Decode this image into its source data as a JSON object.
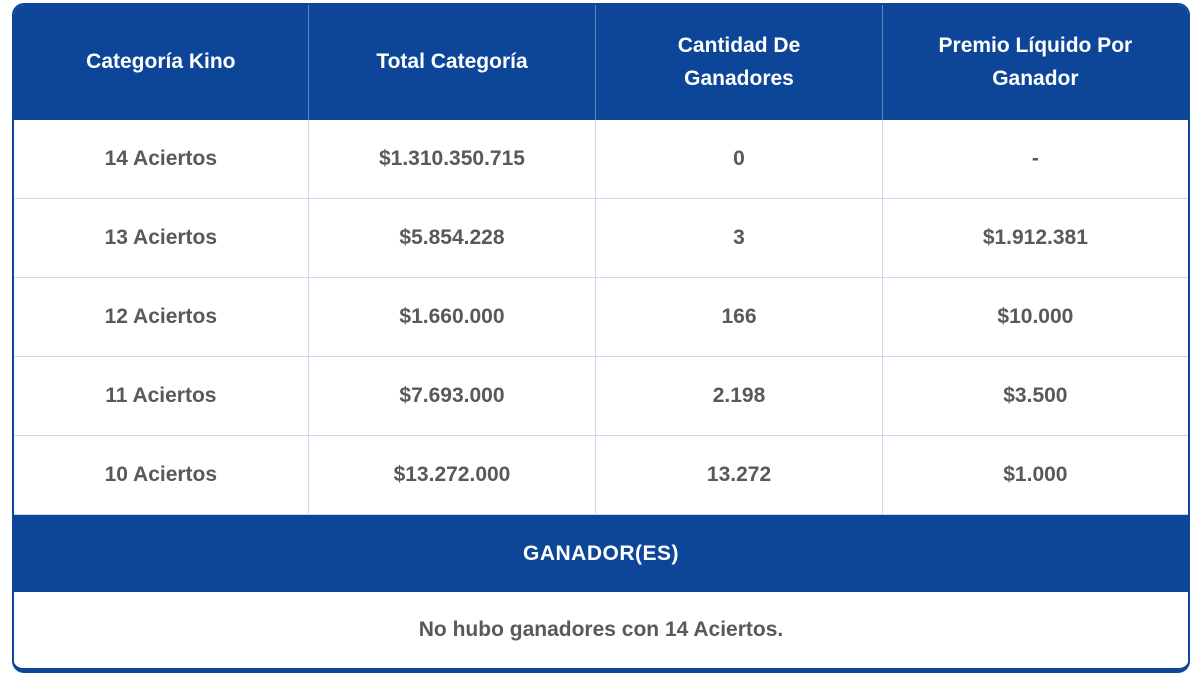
{
  "colors": {
    "header_bg": "#0d4699",
    "header_text": "#ffffff",
    "cell_text": "#58595b",
    "divider": "#ccd9ea"
  },
  "table": {
    "columns": [
      "Categoría Kino",
      "Total Categoría",
      "Cantidad De Ganadores",
      "Premio Líquido Por Ganador"
    ],
    "rows": [
      {
        "category": "14 Aciertos",
        "total": "$1.310.350.715",
        "winners": "0",
        "prize": "-"
      },
      {
        "category": "13 Aciertos",
        "total": "$5.854.228",
        "winners": "3",
        "prize": "$1.912.381"
      },
      {
        "category": "12 Aciertos",
        "total": "$1.660.000",
        "winners": "166",
        "prize": "$10.000"
      },
      {
        "category": "11 Aciertos",
        "total": "$7.693.000",
        "winners": "2.198",
        "prize": "$3.500"
      },
      {
        "category": "10 Aciertos",
        "total": "$13.272.000",
        "winners": "13.272",
        "prize": "$1.000"
      }
    ]
  },
  "winners_section": {
    "title": "GANADOR(ES)",
    "message": "No hubo ganadores con 14 Aciertos."
  }
}
